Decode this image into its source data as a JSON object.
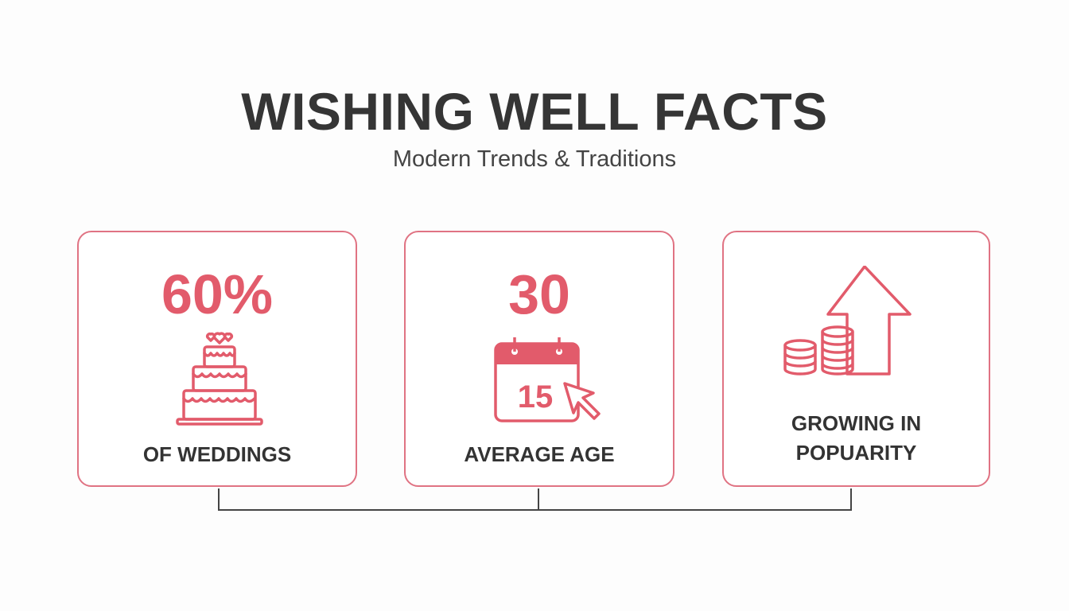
{
  "header": {
    "title": "WISHING WELL FACTS",
    "subtitle": "Modern Trends & Traditions"
  },
  "cards": [
    {
      "stat": "60%",
      "label": "OF WEDDINGS",
      "icon": "wedding-cake-icon"
    },
    {
      "stat": "30",
      "label": "AVERAGE AGE",
      "icon": "calendar-cursor-icon",
      "calendar_day": "15"
    },
    {
      "label_line1": "GROWING IN",
      "label_line2": "POPUARITY",
      "icon": "coins-arrow-up-icon"
    }
  ],
  "colors": {
    "accent": "#e25b6b",
    "text": "#353535"
  }
}
